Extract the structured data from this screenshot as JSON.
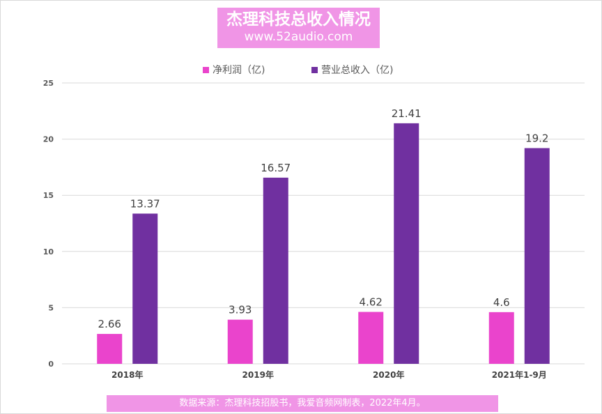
{
  "chart_data": {
    "type": "bar",
    "title": "杰理科技总收入情况",
    "subtitle": "www.52audio.com",
    "categories": [
      "2018年",
      "2019年",
      "2020年",
      "2021年1-9月"
    ],
    "series": [
      {
        "name": "净利润（亿)",
        "color": "#ea44cc",
        "values": [
          2.66,
          3.93,
          4.62,
          4.6
        ]
      },
      {
        "name": "营业总收入（亿)",
        "color": "#7030a0",
        "values": [
          13.37,
          16.57,
          21.41,
          19.2
        ]
      }
    ],
    "ylim": [
      0,
      25
    ],
    "yticks": [
      0,
      5,
      10,
      15,
      20,
      25
    ],
    "grid": true,
    "legend": "top",
    "source_note": "数据来源：杰理科技招股书，我爱音频网制表，2022年4月。"
  }
}
